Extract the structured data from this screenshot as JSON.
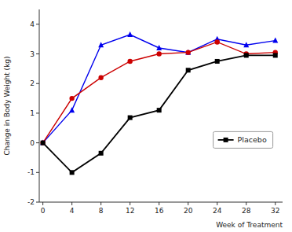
{
  "chart_data": {
    "type": "line",
    "x_label": "Week of Treatment",
    "y_label": "Change in Body Weight (kg)",
    "x": [
      0,
      4,
      8,
      12,
      16,
      20,
      24,
      28,
      32
    ],
    "series": [
      {
        "color": "#0000ee",
        "marker": "triangle",
        "values": [
          0,
          1.1,
          3.3,
          3.65,
          3.2,
          3.05,
          3.5,
          3.3,
          3.45
        ]
      },
      {
        "color": "#cc0000",
        "marker": "circle",
        "values": [
          0,
          1.5,
          2.2,
          2.75,
          3.0,
          3.05,
          3.4,
          3.0,
          3.05
        ]
      },
      {
        "name": "Placebo",
        "color": "#000000",
        "marker": "square",
        "values": [
          0,
          -1.0,
          -0.35,
          0.85,
          1.1,
          2.45,
          2.75,
          2.95,
          2.95
        ]
      }
    ],
    "xlim": [
      -0.5,
      33
    ],
    "ylim": [
      -2,
      4.5
    ],
    "xticks": [
      0,
      4,
      8,
      12,
      16,
      20,
      24,
      28,
      32
    ],
    "yticks": [
      -2,
      -1,
      0,
      1,
      2,
      3,
      4
    ],
    "grid": false,
    "legend": "lower right"
  }
}
